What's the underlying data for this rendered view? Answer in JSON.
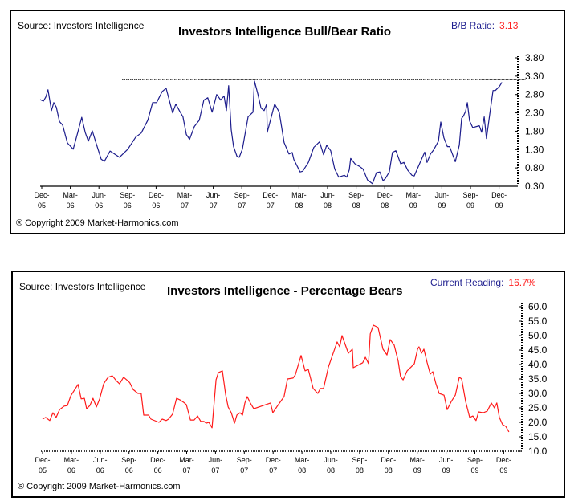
{
  "charts": [
    {
      "source": "Source: Investors Intelligence",
      "title": "Investors Intelligence Bull/Bear Ratio",
      "reading_label": "B/B Ratio:",
      "reading_value": "3.13",
      "copyright": "® Copyright 2009 Market-Harmonics.com"
    },
    {
      "source": "Source: Investors Intelligence",
      "title": "Investors Intelligence - Percentage Bears",
      "reading_label": "Current Reading:",
      "reading_value": "16.7%",
      "copyright": "® Copyright 2009 Market-Harmonics.com"
    }
  ],
  "chart_data": [
    {
      "type": "line",
      "title": "Investors Intelligence Bull/Bear Ratio",
      "xlabel": "",
      "ylabel": "B/B Ratio",
      "color": "#1c1c8c",
      "x_ticks": [
        "Dec-\n05",
        "Mar-\n06",
        "Jun-\n06",
        "Sep-\n06",
        "Dec-\n06",
        "Mar-\n07",
        "Jun-\n07",
        "Sep-\n07",
        "Dec-\n07",
        "Mar-\n08",
        "Jun-\n08",
        "Sep-\n08",
        "Dec-\n08",
        "Mar-\n09",
        "Jun-\n09",
        "Sep-\n09",
        "Dec-\n09"
      ],
      "y_ticks": [
        "3.80",
        "3.30",
        "2.80",
        "2.30",
        "1.80",
        "1.30",
        "0.80",
        "0.30"
      ],
      "ylim": [
        0.3,
        3.8
      ],
      "x_unit": "quarters since Dec-05",
      "reference_line": {
        "value": 3.21,
        "from_x": 2.81,
        "style": "dotted"
      },
      "grid": false,
      "series": [
        {
          "name": "Bull/Bear Ratio",
          "points": [
            [
              -0.06,
              2.66
            ],
            [
              0.06,
              2.62
            ],
            [
              0.14,
              2.73
            ],
            [
              0.22,
              2.93
            ],
            [
              0.34,
              2.36
            ],
            [
              0.42,
              2.58
            ],
            [
              0.51,
              2.45
            ],
            [
              0.62,
              2.06
            ],
            [
              0.73,
              1.97
            ],
            [
              0.9,
              1.48
            ],
            [
              1.1,
              1.31
            ],
            [
              1.26,
              1.77
            ],
            [
              1.4,
              2.18
            ],
            [
              1.52,
              1.77
            ],
            [
              1.63,
              1.53
            ],
            [
              1.77,
              1.81
            ],
            [
              1.88,
              1.53
            ],
            [
              2.08,
              1.04
            ],
            [
              2.19,
              0.98
            ],
            [
              2.39,
              1.26
            ],
            [
              2.72,
              1.09
            ],
            [
              3.01,
              1.31
            ],
            [
              3.29,
              1.64
            ],
            [
              3.48,
              1.75
            ],
            [
              3.71,
              2.1
            ],
            [
              3.88,
              2.58
            ],
            [
              4.02,
              2.58
            ],
            [
              4.21,
              2.88
            ],
            [
              4.35,
              2.97
            ],
            [
              4.47,
              2.62
            ],
            [
              4.58,
              2.3
            ],
            [
              4.69,
              2.54
            ],
            [
              4.83,
              2.34
            ],
            [
              4.94,
              2.19
            ],
            [
              5.06,
              1.71
            ],
            [
              5.17,
              1.58
            ],
            [
              5.34,
              1.93
            ],
            [
              5.51,
              2.1
            ],
            [
              5.67,
              2.65
            ],
            [
              5.81,
              2.71
            ],
            [
              5.96,
              2.32
            ],
            [
              6.12,
              2.8
            ],
            [
              6.26,
              2.65
            ],
            [
              6.38,
              2.76
            ],
            [
              6.46,
              2.36
            ],
            [
              6.54,
              3.04
            ],
            [
              6.63,
              1.84
            ],
            [
              6.71,
              1.38
            ],
            [
              6.83,
              1.12
            ],
            [
              6.91,
              1.09
            ],
            [
              7.02,
              1.31
            ],
            [
              7.22,
              2.19
            ],
            [
              7.39,
              2.32
            ],
            [
              7.44,
              3.17
            ],
            [
              7.56,
              2.82
            ],
            [
              7.67,
              2.43
            ],
            [
              7.78,
              2.36
            ],
            [
              7.87,
              2.54
            ],
            [
              7.89,
              1.77
            ],
            [
              8.15,
              2.54
            ],
            [
              8.31,
              2.32
            ],
            [
              8.48,
              1.49
            ],
            [
              8.65,
              1.18
            ],
            [
              8.76,
              1.22
            ],
            [
              8.82,
              1.03
            ],
            [
              9.04,
              0.69
            ],
            [
              9.13,
              0.71
            ],
            [
              9.33,
              0.95
            ],
            [
              9.52,
              1.36
            ],
            [
              9.72,
              1.51
            ],
            [
              9.86,
              1.16
            ],
            [
              9.97,
              1.42
            ],
            [
              10.11,
              1.27
            ],
            [
              10.25,
              0.77
            ],
            [
              10.39,
              0.55
            ],
            [
              10.59,
              0.6
            ],
            [
              10.67,
              0.55
            ],
            [
              10.76,
              0.75
            ],
            [
              10.81,
              1.06
            ],
            [
              10.96,
              0.91
            ],
            [
              11.12,
              0.84
            ],
            [
              11.24,
              0.77
            ],
            [
              11.4,
              0.47
            ],
            [
              11.52,
              0.4
            ],
            [
              11.57,
              0.37
            ],
            [
              11.71,
              0.67
            ],
            [
              11.83,
              0.69
            ],
            [
              11.94,
              0.45
            ],
            [
              12.02,
              0.51
            ],
            [
              12.16,
              0.69
            ],
            [
              12.27,
              1.22
            ],
            [
              12.39,
              1.27
            ],
            [
              12.56,
              0.91
            ],
            [
              12.67,
              0.95
            ],
            [
              12.81,
              0.73
            ],
            [
              12.95,
              0.6
            ],
            [
              13.03,
              0.58
            ],
            [
              13.26,
              0.99
            ],
            [
              13.4,
              1.23
            ],
            [
              13.48,
              0.95
            ],
            [
              13.6,
              1.18
            ],
            [
              13.71,
              1.29
            ],
            [
              13.88,
              1.53
            ],
            [
              13.96,
              2.05
            ],
            [
              14.07,
              1.62
            ],
            [
              14.19,
              1.38
            ],
            [
              14.27,
              1.38
            ],
            [
              14.47,
              0.97
            ],
            [
              14.61,
              1.42
            ],
            [
              14.69,
              2.15
            ],
            [
              14.75,
              2.21
            ],
            [
              14.83,
              2.34
            ],
            [
              14.89,
              2.58
            ],
            [
              14.97,
              2.08
            ],
            [
              15.08,
              1.9
            ],
            [
              15.22,
              1.93
            ],
            [
              15.31,
              1.95
            ],
            [
              15.39,
              1.77
            ],
            [
              15.48,
              2.19
            ],
            [
              15.56,
              1.6
            ],
            [
              15.67,
              2.25
            ],
            [
              15.79,
              2.91
            ],
            [
              15.87,
              2.91
            ],
            [
              16.01,
              3.02
            ],
            [
              16.1,
              3.13
            ]
          ]
        }
      ]
    },
    {
      "type": "line",
      "title": "Investors Intelligence - Percentage Bears",
      "xlabel": "",
      "ylabel": "Percentage Bears",
      "color": "#ff1a1a",
      "x_ticks": [
        "Dec-\n05",
        "Mar-\n06",
        "Jun-\n06",
        "Sep-\n06",
        "Dec-\n06",
        "Mar-\n07",
        "Jun-\n07",
        "Sep-\n07",
        "Dec-\n07",
        "Mar-\n08",
        "Jun-\n08",
        "Sep-\n08",
        "Dec-\n08",
        "Mar-\n09",
        "Jun-\n09",
        "Sep-\n09",
        "Dec-\n09"
      ],
      "y_ticks": [
        "60.0",
        "55.0",
        "50.0",
        "45.0",
        "40.0",
        "35.0",
        "30.0",
        "25.0",
        "20.0",
        "15.0",
        "10.0"
      ],
      "ylim": [
        10.0,
        60.0
      ],
      "x_unit": "quarters since Dec-05",
      "grid": false,
      "series": [
        {
          "name": "Percentage Bears",
          "points": [
            [
              0.0,
              21.1
            ],
            [
              0.11,
              21.7
            ],
            [
              0.25,
              20.6
            ],
            [
              0.36,
              23.3
            ],
            [
              0.47,
              21.7
            ],
            [
              0.59,
              24.4
            ],
            [
              0.75,
              25.6
            ],
            [
              0.86,
              25.8
            ],
            [
              0.98,
              29.2
            ],
            [
              1.14,
              31.7
            ],
            [
              1.23,
              33.1
            ],
            [
              1.34,
              28.1
            ],
            [
              1.45,
              28.3
            ],
            [
              1.53,
              24.7
            ],
            [
              1.64,
              25.8
            ],
            [
              1.75,
              28.3
            ],
            [
              1.87,
              25.3
            ],
            [
              1.98,
              28.1
            ],
            [
              2.12,
              33.3
            ],
            [
              2.23,
              35.0
            ],
            [
              2.28,
              35.6
            ],
            [
              2.42,
              36.1
            ],
            [
              2.56,
              34.4
            ],
            [
              2.67,
              33.3
            ],
            [
              2.81,
              35.6
            ],
            [
              2.98,
              34.2
            ],
            [
              3.03,
              33.6
            ],
            [
              3.14,
              31.4
            ],
            [
              3.31,
              30.0
            ],
            [
              3.42,
              30.0
            ],
            [
              3.51,
              22.5
            ],
            [
              3.68,
              22.5
            ],
            [
              3.76,
              21.1
            ],
            [
              4.04,
              20.0
            ],
            [
              4.15,
              21.1
            ],
            [
              4.29,
              20.6
            ],
            [
              4.37,
              21.1
            ],
            [
              4.51,
              22.8
            ],
            [
              4.65,
              28.3
            ],
            [
              4.76,
              27.8
            ],
            [
              4.9,
              26.9
            ],
            [
              4.99,
              26.1
            ],
            [
              5.13,
              20.8
            ],
            [
              5.26,
              20.8
            ],
            [
              5.38,
              22.2
            ],
            [
              5.49,
              20.3
            ],
            [
              5.6,
              20.3
            ],
            [
              5.68,
              19.7
            ],
            [
              5.77,
              20.0
            ],
            [
              5.88,
              18.1
            ],
            [
              6.02,
              34.7
            ],
            [
              6.1,
              37.2
            ],
            [
              6.24,
              37.8
            ],
            [
              6.35,
              29.7
            ],
            [
              6.44,
              25.3
            ],
            [
              6.55,
              23.3
            ],
            [
              6.66,
              19.7
            ],
            [
              6.74,
              22.5
            ],
            [
              6.85,
              23.3
            ],
            [
              6.94,
              22.5
            ],
            [
              7.02,
              26.7
            ],
            [
              7.1,
              28.9
            ],
            [
              7.21,
              26.7
            ],
            [
              7.33,
              24.7
            ],
            [
              7.91,
              26.7
            ],
            [
              7.99,
              23.3
            ],
            [
              8.16,
              25.8
            ],
            [
              8.38,
              28.9
            ],
            [
              8.5,
              35.0
            ],
            [
              8.69,
              35.3
            ],
            [
              8.77,
              36.4
            ],
            [
              8.97,
              43.1
            ],
            [
              9.11,
              37.8
            ],
            [
              9.22,
              38.3
            ],
            [
              9.39,
              31.7
            ],
            [
              9.55,
              30.0
            ],
            [
              9.64,
              31.7
            ],
            [
              9.75,
              31.7
            ],
            [
              9.92,
              39.2
            ],
            [
              10.22,
              47.8
            ],
            [
              10.31,
              46.1
            ],
            [
              10.39,
              50.0
            ],
            [
              10.61,
              43.9
            ],
            [
              10.75,
              45.3
            ],
            [
              10.78,
              38.9
            ],
            [
              11.11,
              40.6
            ],
            [
              11.2,
              42.5
            ],
            [
              11.31,
              40.3
            ],
            [
              11.37,
              50.6
            ],
            [
              11.48,
              53.6
            ],
            [
              11.64,
              52.8
            ],
            [
              11.81,
              45.3
            ],
            [
              11.95,
              43.3
            ],
            [
              12.06,
              48.6
            ],
            [
              12.2,
              46.7
            ],
            [
              12.34,
              41.1
            ],
            [
              12.42,
              35.8
            ],
            [
              12.51,
              34.7
            ],
            [
              12.65,
              37.8
            ],
            [
              12.79,
              39.2
            ],
            [
              12.9,
              40.3
            ],
            [
              13.01,
              45.3
            ],
            [
              13.06,
              46.1
            ],
            [
              13.15,
              43.9
            ],
            [
              13.23,
              45.3
            ],
            [
              13.34,
              40.8
            ],
            [
              13.45,
              36.7
            ],
            [
              13.54,
              37.5
            ],
            [
              13.65,
              33.3
            ],
            [
              13.76,
              30.0
            ],
            [
              13.93,
              29.4
            ],
            [
              14.04,
              24.4
            ],
            [
              14.18,
              27.2
            ],
            [
              14.32,
              29.4
            ],
            [
              14.46,
              35.6
            ],
            [
              14.54,
              35.0
            ],
            [
              14.68,
              27.2
            ],
            [
              14.82,
              21.7
            ],
            [
              14.93,
              22.2
            ],
            [
              15.04,
              20.6
            ],
            [
              15.13,
              23.6
            ],
            [
              15.29,
              23.3
            ],
            [
              15.43,
              23.9
            ],
            [
              15.57,
              26.7
            ],
            [
              15.68,
              25.0
            ],
            [
              15.76,
              26.7
            ],
            [
              15.85,
              21.7
            ],
            [
              15.96,
              19.2
            ],
            [
              16.07,
              18.6
            ],
            [
              16.18,
              16.7
            ]
          ]
        }
      ]
    }
  ]
}
